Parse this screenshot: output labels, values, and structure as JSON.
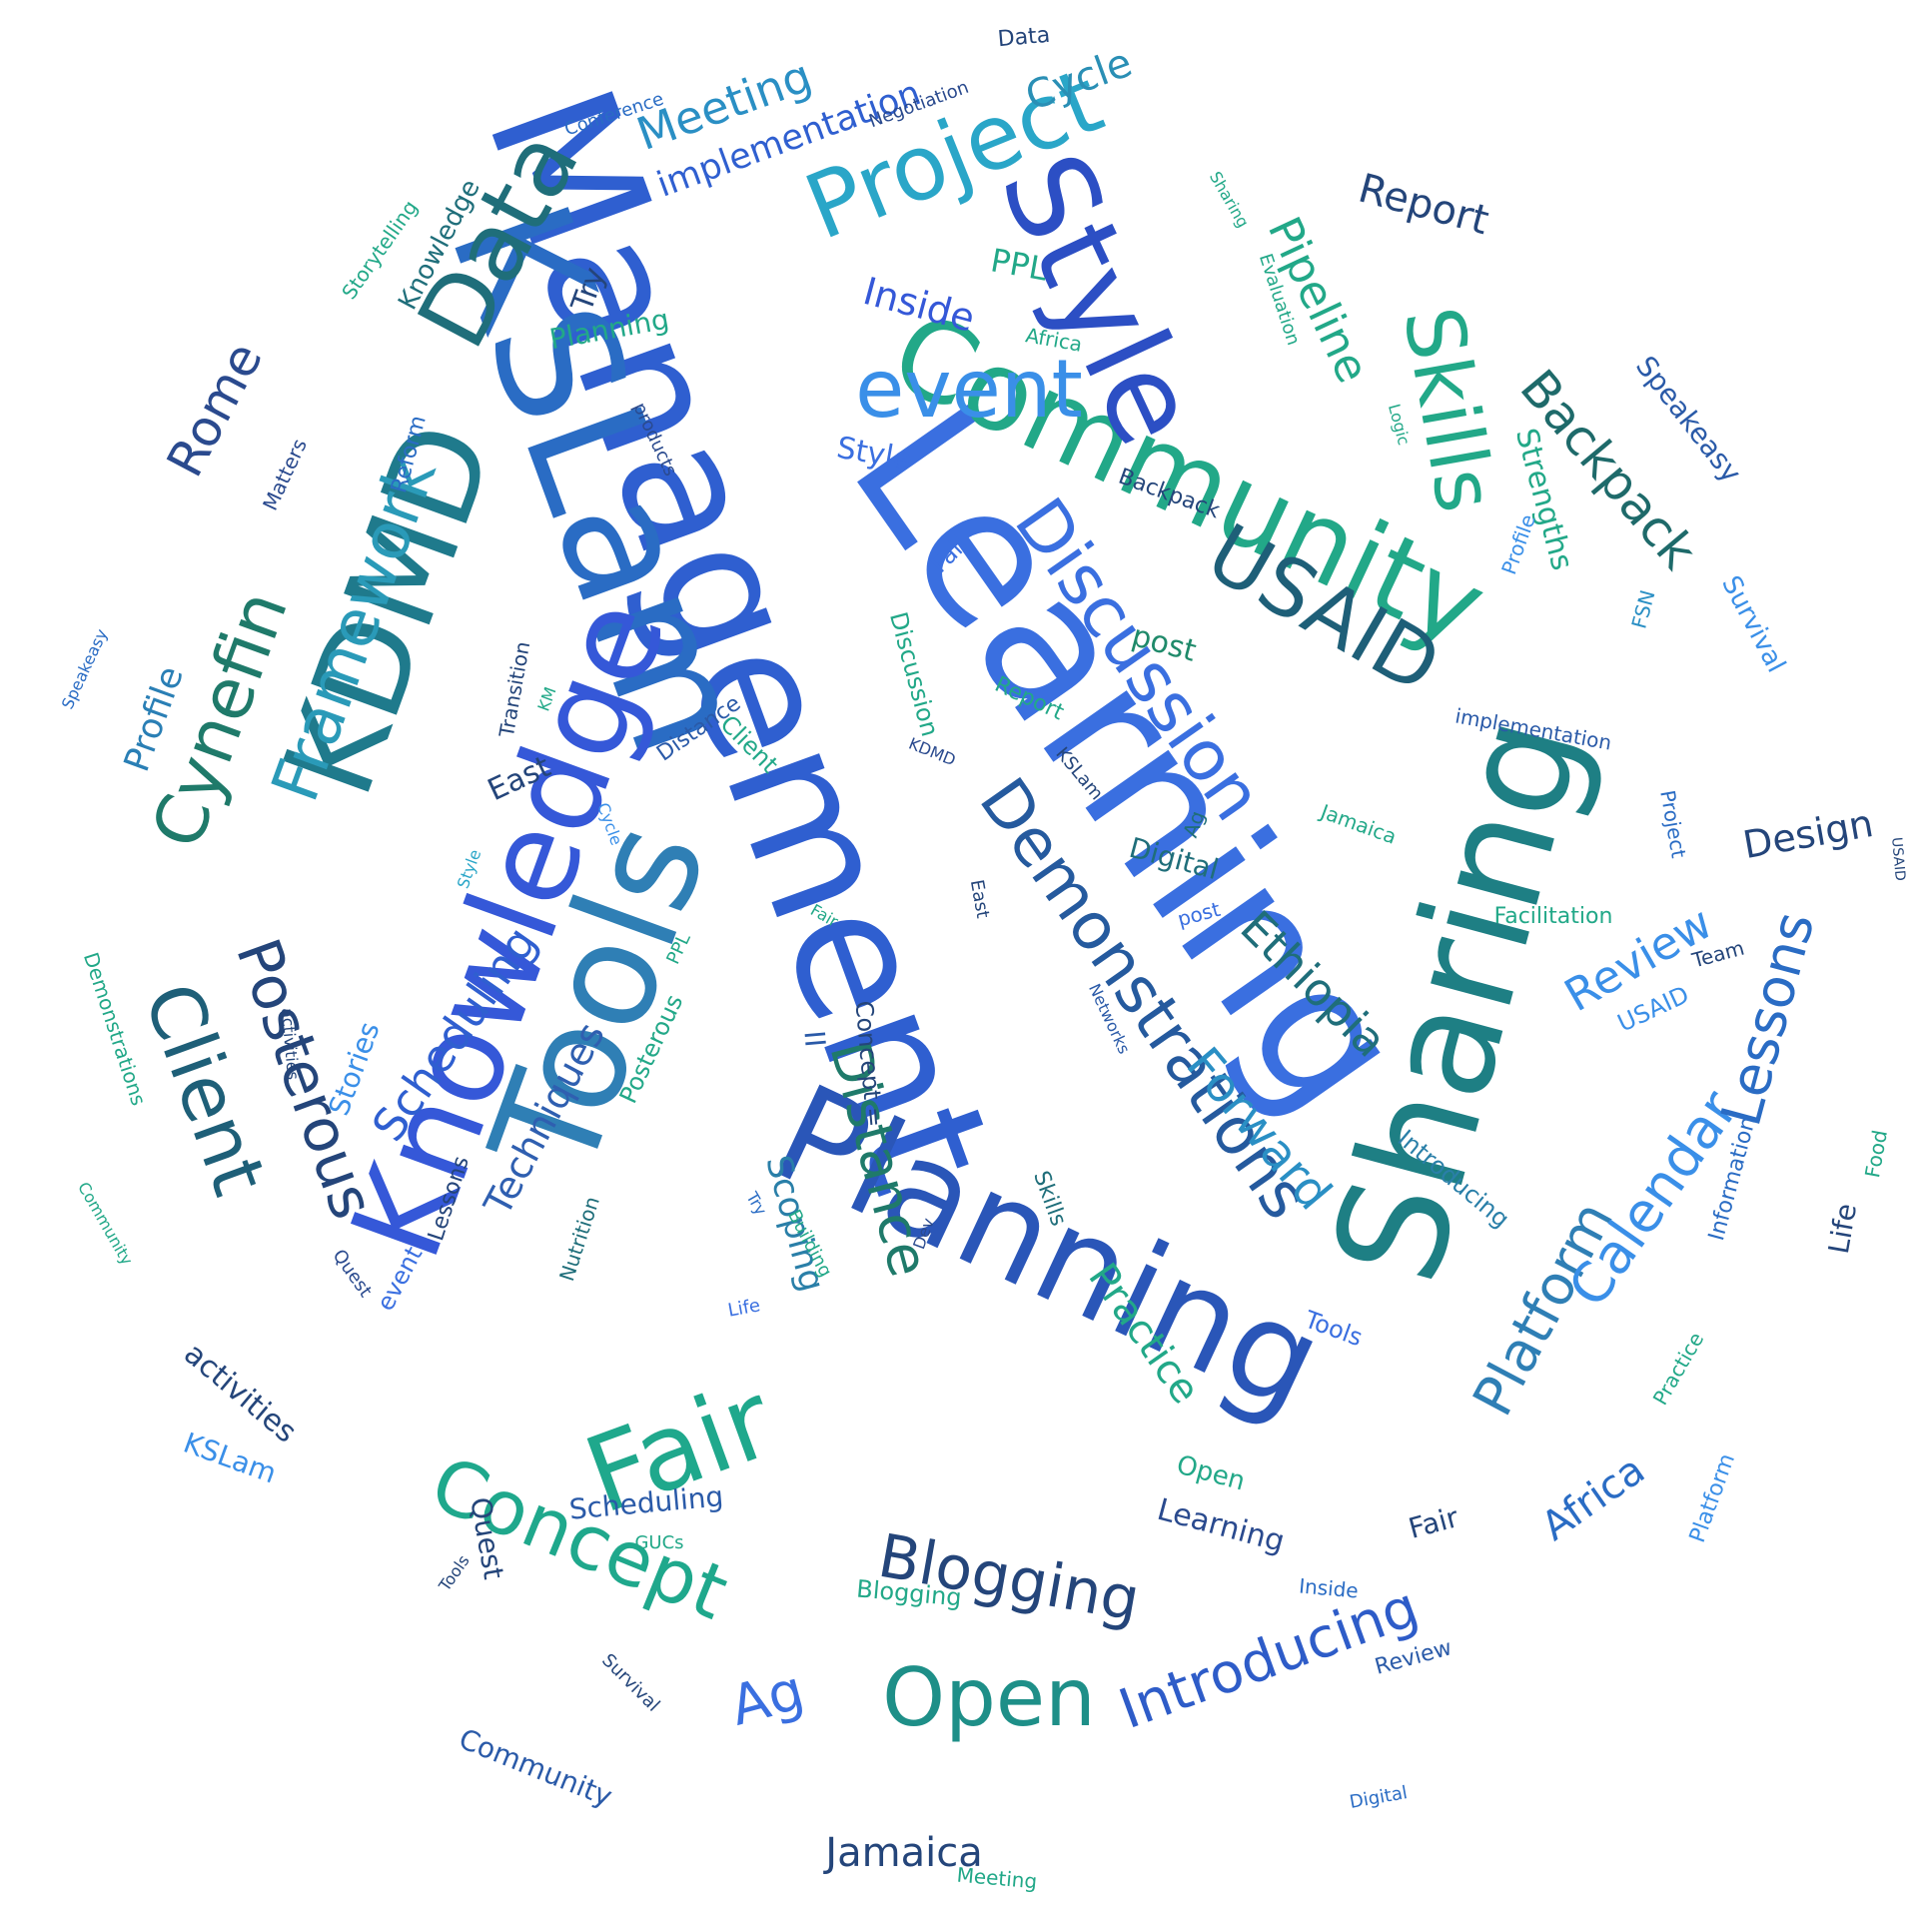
{
  "words": [
    {
      "text": "Learning",
      "color": "#3a6fe0"
    },
    {
      "text": "Management",
      "color": "#2f5fd0"
    },
    {
      "text": "Sharing",
      "color": "#1e7f84"
    },
    {
      "text": "KSLam",
      "color": "#2a6cc4"
    },
    {
      "text": "Knowledge",
      "color": "#3558d8"
    },
    {
      "text": "Tools",
      "color": "#2f7fb5"
    },
    {
      "text": "Planning",
      "color": "#2a56b8"
    },
    {
      "text": "Community",
      "color": "#22a888"
    },
    {
      "text": "Style",
      "color": "#2c4fc4"
    },
    {
      "text": "KDMD",
      "color": "#1f7a8c"
    },
    {
      "text": "Data",
      "color": "#1f6e7a"
    },
    {
      "text": "Project",
      "color": "#2aa6c8"
    },
    {
      "text": "Skills",
      "color": "#22a888"
    },
    {
      "text": "USAID",
      "color": "#1e5f78"
    },
    {
      "text": "Discussion",
      "color": "#3a6fe0"
    },
    {
      "text": "Demonstrations",
      "color": "#255a9e"
    },
    {
      "text": "Fair",
      "color": "#1fa88c"
    },
    {
      "text": "Concept",
      "color": "#1fa88c"
    },
    {
      "text": "Open",
      "color": "#1e8f88"
    },
    {
      "text": "Blogging",
      "color": "#24457a"
    },
    {
      "text": "Introducing",
      "color": "#2e5cc8"
    },
    {
      "text": "Platform",
      "color": "#2f7fb5"
    },
    {
      "text": "Calendar",
      "color": "#3a8fe8"
    },
    {
      "text": "Lessons",
      "color": "#2a6cc4"
    },
    {
      "text": "Client",
      "color": "#1e5f78"
    },
    {
      "text": "Posterous",
      "color": "#24457a"
    },
    {
      "text": "Framework",
      "color": "#2a9ab8"
    },
    {
      "text": "Cynefin",
      "color": "#1f7a6a"
    },
    {
      "text": "Rome",
      "color": "#2a4a8e"
    },
    {
      "text": "Backpack",
      "color": "#1e6a6a"
    },
    {
      "text": "Pipeline",
      "color": "#22a888"
    },
    {
      "text": "Report",
      "color": "#24457a"
    },
    {
      "text": "event",
      "color": "#3a8fe8"
    },
    {
      "text": "Meeting",
      "color": "#2a8fc4"
    },
    {
      "text": "implementation",
      "color": "#2f5fd0"
    },
    {
      "text": "Cycle",
      "color": "#2a8fb5"
    },
    {
      "text": "Scheduling",
      "color": "#2f5fd0"
    },
    {
      "text": "Techniques",
      "color": "#2f5fb0"
    },
    {
      "text": "Distance",
      "color": "#1f7a6a"
    },
    {
      "text": "Forward",
      "color": "#2a8fc4"
    },
    {
      "text": "Ethiopia",
      "color": "#1f6e7a"
    },
    {
      "text": "Review",
      "color": "#3a8fe8"
    },
    {
      "text": "Design",
      "color": "#24457a"
    },
    {
      "text": "Africa",
      "color": "#2a6cc4"
    },
    {
      "text": "Ag",
      "color": "#3a6fe0"
    },
    {
      "text": "Jamaica",
      "color": "#24457a"
    },
    {
      "text": "Practice",
      "color": "#22a888"
    },
    {
      "text": "Scoping",
      "color": "#2a7fa8"
    },
    {
      "text": "Profile",
      "color": "#2a7fb5"
    },
    {
      "text": "Strengths",
      "color": "#22a888"
    },
    {
      "text": "Speakeasy",
      "color": "#2a5aa8"
    },
    {
      "text": "Survival",
      "color": "#3a8fe8"
    },
    {
      "text": "Inside",
      "color": "#3558d8"
    },
    {
      "text": "PPL",
      "color": "#22a888"
    },
    {
      "text": "Planning",
      "color": "#22a888"
    },
    {
      "text": "Try",
      "color": "#24457a"
    },
    {
      "text": "Knowledge",
      "color": "#1f6e7a"
    },
    {
      "text": "Storytelling",
      "color": "#22a888"
    },
    {
      "text": "Conference",
      "color": "#2a6cc4"
    },
    {
      "text": "Negotiation",
      "color": "#2a4a8e"
    },
    {
      "text": "Data",
      "color": "#24457a"
    },
    {
      "text": "Sharing",
      "color": "#22a888"
    },
    {
      "text": "Evaluation",
      "color": "#22a888"
    },
    {
      "text": "Africa",
      "color": "#22a888"
    },
    {
      "text": "Style",
      "color": "#3a6fe0"
    },
    {
      "text": "Backpack",
      "color": "#24457a"
    },
    {
      "text": "Fail",
      "color": "#3a6fe0"
    },
    {
      "text": "post",
      "color": "#1f8a6a"
    },
    {
      "text": "Reform",
      "color": "#2a6cc4"
    },
    {
      "text": "Matters",
      "color": "#2a4a8e"
    },
    {
      "text": "products",
      "color": "#2a4a8e"
    },
    {
      "text": "Logic",
      "color": "#22a888"
    },
    {
      "text": "Profile",
      "color": "#3a8fe8"
    },
    {
      "text": "FSN",
      "color": "#2a8fc4"
    },
    {
      "text": "implementation",
      "color": "#2a5aa8"
    },
    {
      "text": "Project",
      "color": "#2a6cc4"
    },
    {
      "text": "USAID",
      "color": "#24457a"
    },
    {
      "text": "Facilitation",
      "color": "#22a888"
    },
    {
      "text": "Team",
      "color": "#24457a"
    },
    {
      "text": "USAID",
      "color": "#3a8fe8"
    },
    {
      "text": "Jamaica",
      "color": "#22a888"
    },
    {
      "text": "Digital",
      "color": "#1f6e7a"
    },
    {
      "text": "Ag",
      "color": "#1f6e7a"
    },
    {
      "text": "post",
      "color": "#3a6fe0"
    },
    {
      "text": "Introducing",
      "color": "#2a7fa8"
    },
    {
      "text": "Information",
      "color": "#2a6cc4"
    },
    {
      "text": "Food",
      "color": "#22a888"
    },
    {
      "text": "Life",
      "color": "#24457a"
    },
    {
      "text": "Practice",
      "color": "#22a888"
    },
    {
      "text": "Platform",
      "color": "#3a8fe8"
    },
    {
      "text": "Fair",
      "color": "#24457a"
    },
    {
      "text": "Review",
      "color": "#2a5aa8"
    },
    {
      "text": "Digital",
      "color": "#2a6cc4"
    },
    {
      "text": "Inside",
      "color": "#2a6cc4"
    },
    {
      "text": "Learning",
      "color": "#2a4a8e"
    },
    {
      "text": "Tools",
      "color": "#3a6fe0"
    },
    {
      "text": "Open",
      "color": "#22a888"
    },
    {
      "text": "Meeting",
      "color": "#22a888"
    },
    {
      "text": "Community",
      "color": "#2a5aa8"
    },
    {
      "text": "Survival",
      "color": "#24457a"
    },
    {
      "text": "Blogging",
      "color": "#22a888"
    },
    {
      "text": "GUCs",
      "color": "#22a888"
    },
    {
      "text": "Scheduling",
      "color": "#2a5aa8"
    },
    {
      "text": "Quest",
      "color": "#24457a"
    },
    {
      "text": "Tools",
      "color": "#24457a"
    },
    {
      "text": "KSLam",
      "color": "#3a8fe8"
    },
    {
      "text": "activities",
      "color": "#24457a"
    },
    {
      "text": "Community",
      "color": "#22a888"
    },
    {
      "text": "Quest",
      "color": "#2a4a8e"
    },
    {
      "text": "event",
      "color": "#3a6fe0"
    },
    {
      "text": "Lessons",
      "color": "#24457a"
    },
    {
      "text": "Stories",
      "color": "#3a8fe8"
    },
    {
      "text": "Nutrition",
      "color": "#1f6e7a"
    },
    {
      "text": "Posterous",
      "color": "#22a888"
    },
    {
      "text": "Try",
      "color": "#2a6cc4"
    },
    {
      "text": "Building",
      "color": "#22a888"
    },
    {
      "text": "Life",
      "color": "#3a6fe0"
    },
    {
      "text": "Dev",
      "color": "#2a4a8e"
    },
    {
      "text": "Skills",
      "color": "#1f6e7a"
    },
    {
      "text": "Networks",
      "color": "#2a5aa8"
    },
    {
      "text": "Concept =",
      "color": "#24457a"
    },
    {
      "text": "II",
      "color": "#2a5aa8"
    },
    {
      "text": "East",
      "color": "#24457a"
    },
    {
      "text": "PPL",
      "color": "#22a888"
    },
    {
      "text": "Fair",
      "color": "#22a888"
    },
    {
      "text": "Style",
      "color": "#2aa6c8"
    },
    {
      "text": "Cycle",
      "color": "#3a8fe8"
    },
    {
      "text": "KM",
      "color": "#22a888"
    },
    {
      "text": "Transition",
      "color": "#24457a"
    },
    {
      "text": "East",
      "color": "#24457a"
    },
    {
      "text": "Distance",
      "color": "#2a5aa8"
    },
    {
      "text": "Client",
      "color": "#22a888"
    },
    {
      "text": "Discussion",
      "color": "#22a888"
    },
    {
      "text": "Report",
      "color": "#22a888"
    },
    {
      "text": "KSLam",
      "color": "#24457a"
    },
    {
      "text": "KDMD",
      "color": "#2a4a8e"
    },
    {
      "text": "Speakeasy",
      "color": "#2a6cc4"
    },
    {
      "text": "Demonstrations",
      "color": "#22a888"
    },
    {
      "text": "activities",
      "color": "#24457a"
    }
  ]
}
